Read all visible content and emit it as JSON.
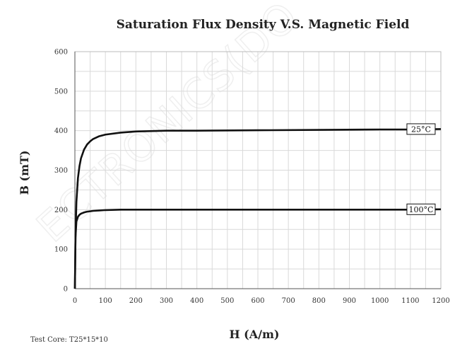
{
  "chart_data": {
    "type": "line",
    "title": "Saturation Flux Density V.S. Magnetic Field",
    "xlabel": "H (A/m)",
    "ylabel": "B (mT)",
    "xlim": [
      0,
      1200
    ],
    "ylim": [
      0,
      600
    ],
    "xticks": [
      "0",
      "100",
      "200",
      "300",
      "400",
      "500",
      "600",
      "700",
      "800",
      "900",
      "1000",
      "1100",
      "1200"
    ],
    "yticks": [
      "0",
      "100",
      "200",
      "300",
      "400",
      "500",
      "600"
    ],
    "grid": true,
    "series": [
      {
        "name": "25°C",
        "x": [
          0,
          2,
          5,
          10,
          15,
          20,
          30,
          40,
          50,
          60,
          80,
          100,
          150,
          200,
          300,
          400,
          600,
          800,
          1000,
          1100,
          1200
        ],
        "y": [
          0,
          130,
          220,
          280,
          310,
          330,
          352,
          365,
          373,
          379,
          386,
          390,
          395,
          398,
          400,
          400,
          401,
          402,
          403,
          403,
          404
        ]
      },
      {
        "name": "100°C",
        "x": [
          0,
          2,
          5,
          10,
          15,
          20,
          30,
          40,
          60,
          80,
          100,
          150,
          200,
          400,
          600,
          800,
          1000,
          1100,
          1200
        ],
        "y": [
          0,
          130,
          170,
          182,
          187,
          190,
          193,
          195,
          197,
          198,
          199,
          200,
          200,
          200,
          200,
          200,
          200,
          200,
          201
        ]
      }
    ],
    "annotations": [
      "Test Core: T25*15*10"
    ]
  },
  "watermark": "ECTRONICS(DO"
}
